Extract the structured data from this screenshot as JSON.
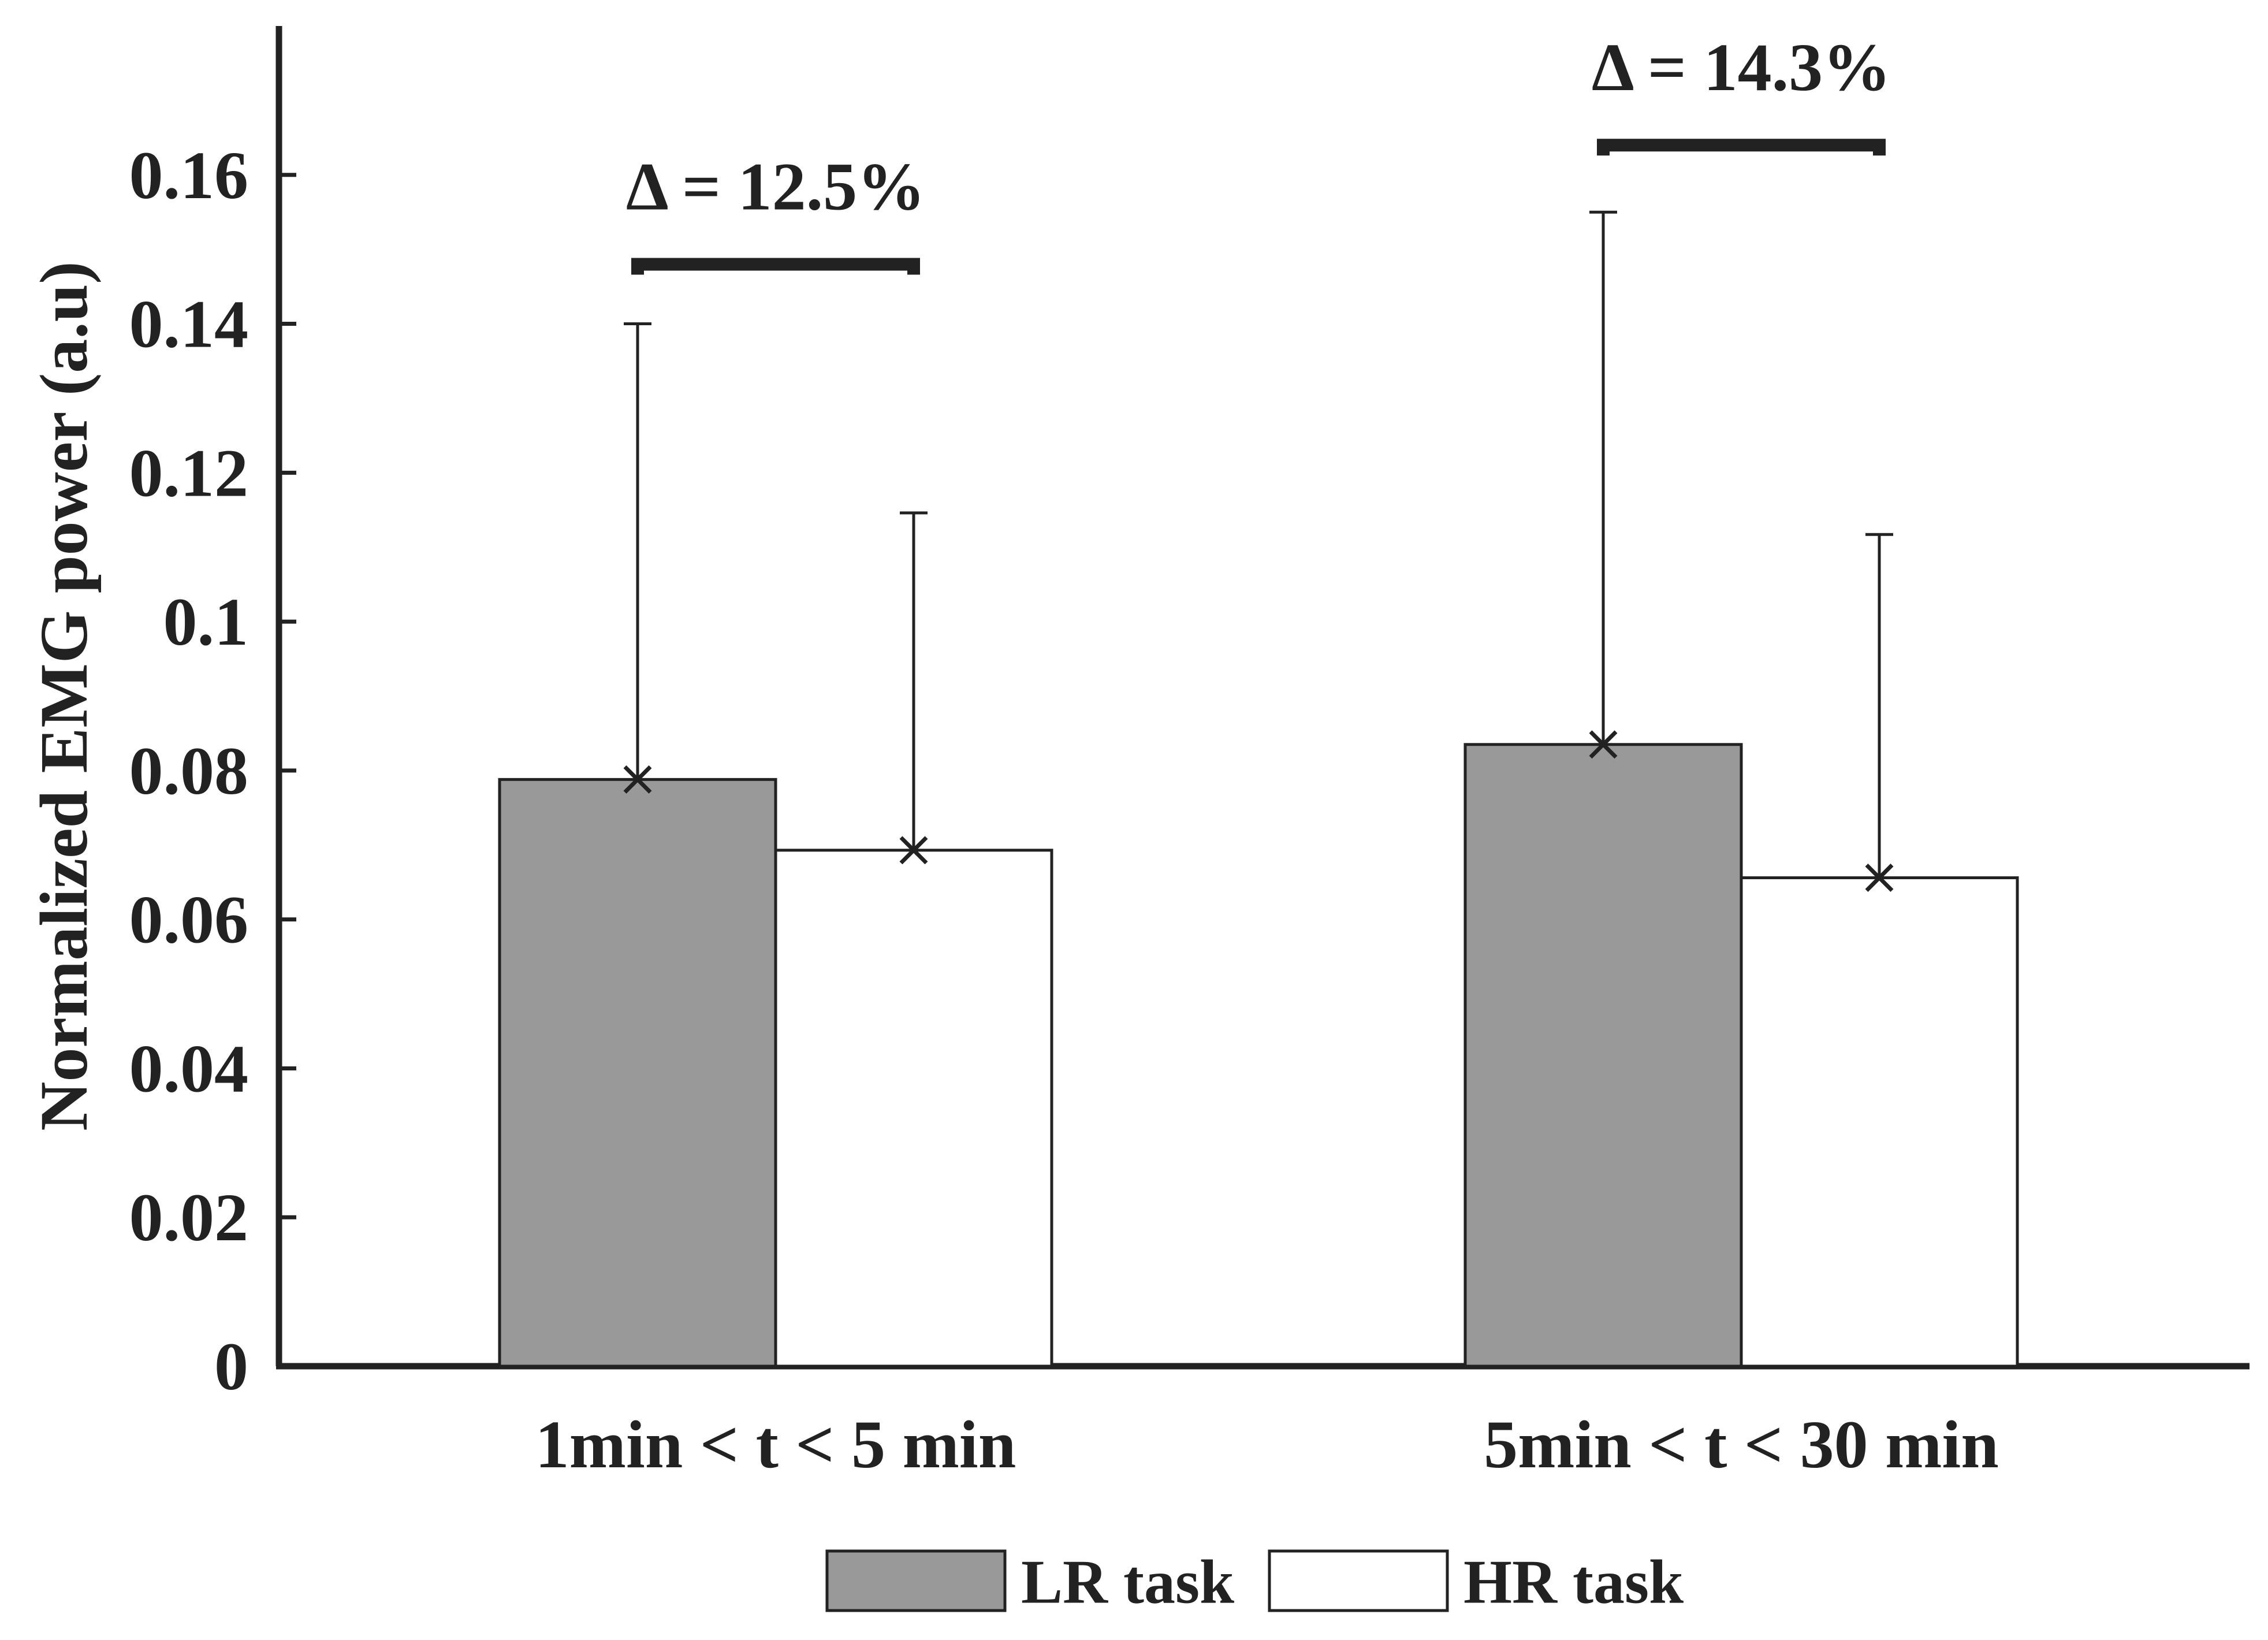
{
  "chart_data": {
    "type": "bar",
    "title": "",
    "xlabel": "",
    "ylabel": "Normalized EMG power (a.u)",
    "ylim": [
      0,
      0.18
    ],
    "yticks": [
      0,
      0.02,
      0.04,
      0.06,
      0.08,
      0.1,
      0.12,
      0.14,
      0.16
    ],
    "ytick_labels": [
      "0",
      "0.02",
      "0.04",
      "0.06",
      "0.08",
      "0.1",
      "0.12",
      "0.14",
      "0.16"
    ],
    "categories": [
      "1min < t < 5 min",
      "5min < t < 30 min"
    ],
    "series": [
      {
        "name": "LR task",
        "values": [
          0.0788,
          0.0835
        ],
        "error_upper": [
          0.14,
          0.155
        ],
        "color": "#999999"
      },
      {
        "name": "HR task",
        "values": [
          0.0693,
          0.0656
        ],
        "error_upper": [
          0.1146,
          0.1117
        ],
        "color": "#ffffff"
      }
    ],
    "annotations": [
      {
        "text": "Δ = 12.5%",
        "category_index": 0,
        "bracket_level": 0.148
      },
      {
        "text": "Δ = 14.3%",
        "category_index": 1,
        "bracket_level": 0.164
      }
    ],
    "legend": {
      "position": "bottom",
      "entries": [
        "LR task",
        "HR task"
      ]
    },
    "grid": false
  }
}
